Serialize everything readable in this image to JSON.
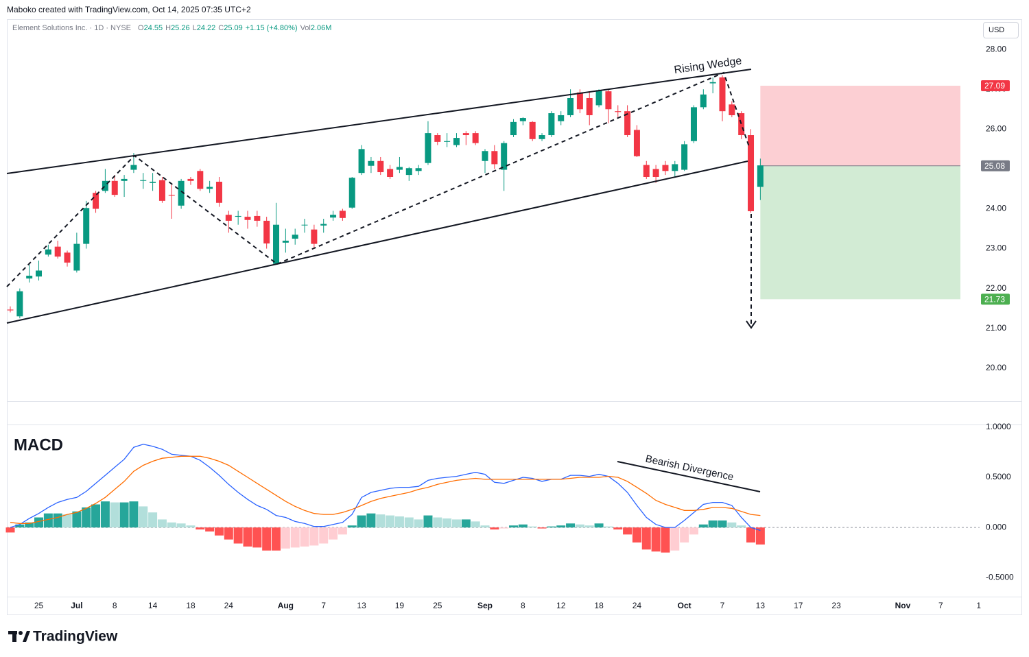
{
  "header": {
    "credit": "Maboko created with TradingView.com, Oct 14, 2025 07:35 UTC+2",
    "currency": "USD",
    "logo": "TradingView"
  },
  "chart_data": [
    {
      "type": "candlestick",
      "title": "Element Solutions Inc. · 1D · NYSE",
      "legend": {
        "labels": [
          "O",
          "H",
          "L",
          "C"
        ],
        "change": "+1.15 (+4.80%)",
        "volume_label": "Vol",
        "volume": "2.06M"
      },
      "annotations": [
        "Rising Wedge"
      ],
      "categories": [
        null,
        null,
        null,
        "25",
        null,
        null,
        null,
        "Jul",
        null,
        null,
        null,
        "8",
        null,
        null,
        null,
        "14",
        null,
        null,
        null,
        "18",
        null,
        null,
        null,
        "24",
        null,
        null,
        null,
        null,
        null,
        "Aug",
        null,
        null,
        null,
        "7",
        null,
        null,
        null,
        "13",
        null,
        null,
        null,
        "19",
        null,
        null,
        null,
        "25",
        null,
        null,
        null,
        null,
        "Sep",
        null,
        null,
        null,
        "8",
        null,
        null,
        null,
        "12",
        null,
        null,
        null,
        "18",
        null,
        null,
        null,
        "24",
        null,
        null,
        null,
        null,
        "Oct",
        null,
        null,
        null,
        "7",
        null,
        null,
        null,
        "13",
        null,
        null,
        null,
        "17",
        null,
        null,
        null,
        "23",
        null,
        null,
        null,
        null,
        null,
        null,
        "Nov",
        null,
        null,
        null,
        "7",
        null,
        null,
        null,
        "1"
      ],
      "open": [
        21.47,
        21.3,
        22.25,
        22.3,
        22.85,
        23.05,
        22.9,
        22.45,
        23.12,
        24.4,
        24.45,
        24.7,
        24.7,
        24.98,
        24.7,
        24.65,
        24.72,
        24.35,
        24.08,
        24.75,
        24.95,
        24.5,
        24.68,
        23.85,
        23.8,
        23.8,
        23.82,
        23.7,
        22.62,
        23.15,
        23.25,
        23.6,
        23.48,
        23.58,
        23.78,
        23.95,
        24.03,
        24.9,
        25.08,
        25.2,
        25.0,
        24.98,
        24.85,
        24.95,
        25.15,
        25.85,
        25.68,
        25.6,
        25.9,
        25.9,
        25.2,
        25.45,
        24.98,
        25.85,
        26.2,
        26.18,
        25.75,
        25.85,
        26.2,
        26.35,
        26.92,
        26.78,
        26.6,
        26.95,
        26.45,
        26.45,
        25.98,
        25.1,
        25.0,
        25.1,
        24.95,
        24.98,
        25.7,
        26.55,
        27.15,
        27.3,
        26.62,
        26.4,
        25.85,
        24.55,
        null,
        null,
        null,
        null,
        null,
        null,
        null,
        null,
        null,
        null,
        null,
        null,
        null,
        null,
        null,
        null,
        null,
        null,
        null,
        null,
        null,
        null,
        null
      ],
      "high": [
        21.55,
        22.0,
        22.6,
        22.7,
        23.1,
        23.2,
        22.95,
        23.4,
        24.2,
        24.45,
        25.0,
        24.85,
        24.85,
        25.4,
        24.9,
        24.9,
        24.8,
        24.6,
        24.75,
        24.8,
        25.0,
        24.7,
        24.8,
        23.95,
        23.95,
        23.95,
        23.95,
        23.8,
        24.15,
        23.5,
        23.5,
        23.75,
        23.6,
        23.75,
        23.95,
        24.0,
        24.8,
        25.6,
        25.3,
        25.3,
        25.1,
        25.3,
        25.05,
        25.1,
        26.2,
        25.9,
        25.9,
        25.9,
        25.95,
        25.95,
        25.5,
        25.6,
        25.7,
        26.25,
        26.3,
        26.2,
        25.9,
        26.45,
        26.45,
        27.0,
        27.0,
        26.95,
        27.0,
        27.0,
        26.6,
        26.6,
        26.1,
        25.2,
        25.1,
        25.2,
        25.2,
        25.7,
        26.6,
        27.0,
        27.3,
        27.35,
        26.7,
        26.45,
        26.0,
        25.26,
        null,
        null,
        null,
        null,
        null,
        null,
        null,
        null,
        null,
        null,
        null,
        null,
        null,
        null,
        null,
        null,
        null,
        null,
        null,
        null,
        null,
        null,
        null
      ],
      "low": [
        21.4,
        21.25,
        22.15,
        22.2,
        22.8,
        22.75,
        22.55,
        22.4,
        23.0,
        23.9,
        24.4,
        24.3,
        24.3,
        24.9,
        24.5,
        24.45,
        24.15,
        23.75,
        24.0,
        24.6,
        24.45,
        24.4,
        24.05,
        23.4,
        23.6,
        23.5,
        23.55,
        23.0,
        22.6,
        22.9,
        23.1,
        23.4,
        23.0,
        23.4,
        23.7,
        23.7,
        24.0,
        24.85,
        24.9,
        24.85,
        24.75,
        24.9,
        24.7,
        24.85,
        25.1,
        25.6,
        25.55,
        25.55,
        25.6,
        25.6,
        24.9,
        25.0,
        24.45,
        25.8,
        26.1,
        25.7,
        25.7,
        25.8,
        26.1,
        26.3,
        26.4,
        26.1,
        26.55,
        26.15,
        26.3,
        25.8,
        25.3,
        24.75,
        24.65,
        24.85,
        24.8,
        24.95,
        25.65,
        26.5,
        26.9,
        26.2,
        26.3,
        25.75,
        23.9,
        24.22,
        null,
        null,
        null,
        null,
        null,
        null,
        null,
        null,
        null,
        null,
        null,
        null,
        null,
        null,
        null,
        null,
        null,
        null,
        null,
        null,
        null,
        null,
        null
      ],
      "close": [
        21.45,
        21.93,
        22.32,
        22.45,
        22.98,
        22.8,
        22.65,
        23.12,
        24.02,
        24.0,
        24.7,
        24.35,
        24.75,
        25.1,
        24.72,
        24.68,
        24.2,
        24.33,
        24.7,
        24.7,
        24.5,
        24.55,
        24.15,
        23.7,
        23.82,
        23.72,
        23.7,
        23.13,
        23.6,
        23.2,
        23.35,
        23.6,
        23.12,
        23.62,
        23.85,
        23.77,
        24.78,
        25.5,
        25.2,
        24.92,
        24.8,
        25.05,
        25.02,
        25.02,
        25.9,
        25.68,
        25.7,
        25.78,
        25.85,
        25.65,
        25.45,
        25.12,
        25.65,
        26.18,
        26.28,
        25.75,
        25.85,
        26.4,
        26.35,
        26.78,
        26.5,
        26.35,
        26.98,
        26.5,
        26.43,
        25.85,
        25.32,
        24.8,
        24.8,
        24.95,
        25.12,
        25.62,
        26.55,
        26.87,
        27.18,
        26.45,
        26.35,
        25.85,
        23.94,
        25.09,
        null,
        null,
        null,
        null,
        null,
        null,
        null,
        null,
        null,
        null,
        null,
        null,
        null,
        null,
        null,
        null,
        null,
        null,
        null,
        null,
        null,
        null,
        null
      ],
      "up_color": "#089981",
      "down_color": "#f23645",
      "ylim": [
        19.17,
        28.76
      ],
      "yticks": [
        {
          "value": 20,
          "label": "20.00"
        },
        {
          "value": 21,
          "label": "21.00"
        },
        {
          "value": 22,
          "label": "22.00"
        },
        {
          "value": 23,
          "label": "23.00"
        },
        {
          "value": 24,
          "label": "24.00"
        },
        {
          "value": 25,
          "label": "25.00"
        },
        {
          "value": 26,
          "label": "26.00"
        },
        {
          "value": 27,
          "label": "27.00"
        },
        {
          "value": 28,
          "label": "28.00"
        }
      ],
      "position": {
        "stop": 27.09,
        "entry": 25.08,
        "target": 21.73,
        "stop_color": "#f23645",
        "entry_color": "#787b86",
        "target_color": "#4caf50",
        "stop_fill": "#fccfd3",
        "target_fill": "#d2ebd4"
      }
    },
    {
      "type": "macd",
      "title": "MACD",
      "annotations": [
        "Bearish Divergence"
      ],
      "ylim": [
        -0.69,
        1.02
      ],
      "yticks": [
        {
          "value": 1,
          "label": "1.0000"
        },
        {
          "value": 0.5,
          "label": "0.5000"
        },
        {
          "value": 0,
          "label": "0.000"
        },
        {
          "value": -0.5,
          "label": "-0.5000"
        }
      ],
      "series": [
        {
          "kind": "histogram",
          "colors": {
            "rise_up": "#26a69a",
            "fall_up": "#b2dfdb",
            "rise_down": "#ffcdd2",
            "fall_down": "#ff5252"
          },
          "values": [
            -0.05,
            0.03,
            0.05,
            0.1,
            0.14,
            0.14,
            0.13,
            0.16,
            0.2,
            0.23,
            0.26,
            0.25,
            0.25,
            0.26,
            0.21,
            0.15,
            0.08,
            0.05,
            0.04,
            0.02,
            -0.02,
            -0.04,
            -0.08,
            -0.12,
            -0.16,
            -0.19,
            -0.2,
            -0.23,
            -0.23,
            -0.21,
            -0.2,
            -0.19,
            -0.18,
            -0.16,
            -0.12,
            -0.07,
            0.02,
            0.12,
            0.14,
            0.13,
            0.12,
            0.11,
            0.1,
            0.08,
            0.12,
            0.1,
            0.09,
            0.08,
            0.08,
            0.06,
            0.02,
            -0.02,
            -0.01,
            0.02,
            0.03,
            0.01,
            -0.01,
            0.01,
            0.02,
            0.04,
            0.03,
            0.02,
            0.04,
            0.01,
            -0.02,
            -0.07,
            -0.15,
            -0.22,
            -0.24,
            -0.25,
            -0.23,
            -0.15,
            -0.07,
            0.03,
            0.07,
            0.07,
            0.05,
            0.02,
            -0.15,
            -0.17
          ]
        },
        {
          "kind": "line",
          "color": "#2962ff",
          "values": [
            0.0,
            0.03,
            0.09,
            0.14,
            0.2,
            0.25,
            0.28,
            0.3,
            0.36,
            0.44,
            0.52,
            0.6,
            0.68,
            0.8,
            0.83,
            0.81,
            0.78,
            0.73,
            0.72,
            0.71,
            0.67,
            0.6,
            0.52,
            0.43,
            0.35,
            0.28,
            0.22,
            0.18,
            0.12,
            0.1,
            0.06,
            0.04,
            0.01,
            0.01,
            0.03,
            0.05,
            0.13,
            0.3,
            0.35,
            0.37,
            0.39,
            0.4,
            0.4,
            0.41,
            0.47,
            0.49,
            0.5,
            0.51,
            0.53,
            0.55,
            0.53,
            0.45,
            0.44,
            0.47,
            0.5,
            0.49,
            0.46,
            0.48,
            0.48,
            0.52,
            0.52,
            0.51,
            0.53,
            0.51,
            0.44,
            0.35,
            0.22,
            0.1,
            0.03,
            0.0,
            0.0,
            0.07,
            0.15,
            0.23,
            0.25,
            0.25,
            0.22,
            0.1,
            0.0,
            -0.03
          ]
        },
        {
          "kind": "line",
          "color": "#ff6d00",
          "values": [
            0.05,
            0.04,
            0.04,
            0.06,
            0.08,
            0.1,
            0.13,
            0.15,
            0.19,
            0.24,
            0.3,
            0.38,
            0.46,
            0.56,
            0.62,
            0.66,
            0.69,
            0.7,
            0.71,
            0.71,
            0.71,
            0.69,
            0.66,
            0.62,
            0.56,
            0.5,
            0.44,
            0.38,
            0.32,
            0.26,
            0.21,
            0.17,
            0.14,
            0.13,
            0.13,
            0.15,
            0.18,
            0.22,
            0.26,
            0.29,
            0.31,
            0.33,
            0.35,
            0.38,
            0.4,
            0.43,
            0.45,
            0.47,
            0.48,
            0.49,
            0.48,
            0.48,
            0.48,
            0.48,
            0.48,
            0.48,
            0.48,
            0.48,
            0.48,
            0.49,
            0.5,
            0.5,
            0.5,
            0.51,
            0.5,
            0.46,
            0.4,
            0.34,
            0.27,
            0.23,
            0.2,
            0.17,
            0.17,
            0.18,
            0.2,
            0.2,
            0.19,
            0.16,
            0.13,
            0.12
          ]
        }
      ]
    }
  ]
}
